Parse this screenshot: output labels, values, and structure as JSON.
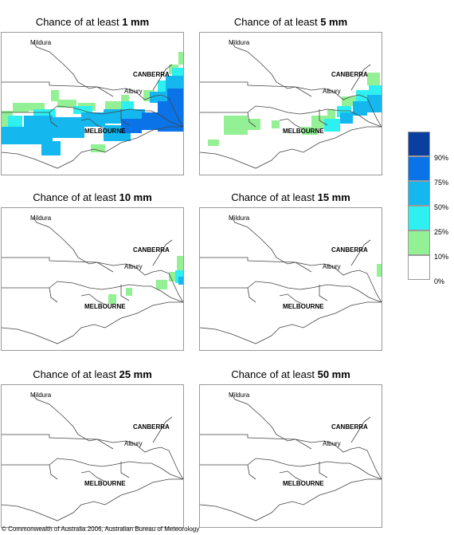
{
  "panels": [
    {
      "title_prefix": "Chance of at least ",
      "threshold": "1 mm"
    },
    {
      "title_prefix": "Chance of at least ",
      "threshold": "5 mm"
    },
    {
      "title_prefix": "Chance of at least ",
      "threshold": "10 mm"
    },
    {
      "title_prefix": "Chance of at least ",
      "threshold": "15 mm"
    },
    {
      "title_prefix": "Chance of at least ",
      "threshold": "25 mm"
    },
    {
      "title_prefix": "Chance of at least ",
      "threshold": "50 mm"
    }
  ],
  "map_labels": {
    "mildura": "Mildura",
    "canberra": "CANBERRA",
    "albury": "Albury",
    "melbourne": "MELBOURNE"
  },
  "legend": {
    "labels": [
      "90%",
      "75%",
      "50%",
      "25%",
      "10%",
      "0%"
    ],
    "colors": [
      "#0a3fa0",
      "#0b73e8",
      "#14b8ee",
      "#2ff0f0",
      "#94f094",
      "#ffffff"
    ]
  },
  "copyright": "© Commonwealth of Australia 2006, Australian Bureau of Meteorology"
}
